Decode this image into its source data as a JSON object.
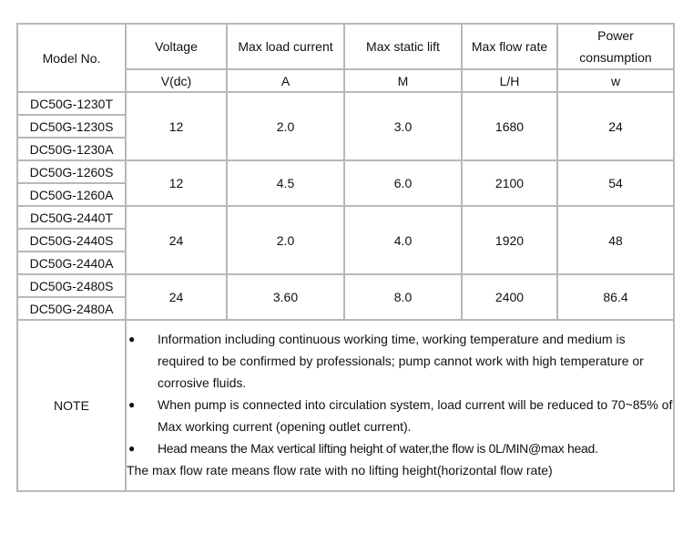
{
  "headers": [
    "Model No.",
    "Voltage",
    "Max load current",
    "Max static lift",
    "Max flow rate",
    "Power consumption"
  ],
  "units": [
    "V(dc)",
    "A",
    "M",
    "L/H",
    "w"
  ],
  "groups": [
    {
      "models": [
        "DC50G-1230T",
        "DC50G-1230S",
        "DC50G-1230A"
      ],
      "voltage": "12",
      "current": "2.0",
      "lift": "3.0",
      "flow": "1680",
      "power": "24"
    },
    {
      "models": [
        "DC50G-1260S",
        "DC50G-1260A"
      ],
      "voltage": "12",
      "current": "4.5",
      "lift": "6.0",
      "flow": "2100",
      "power": "54"
    },
    {
      "models": [
        "DC50G-2440T",
        "DC50G-2440S",
        "DC50G-2440A"
      ],
      "voltage": "24",
      "current": "2.0",
      "lift": "4.0",
      "flow": "1920",
      "power": "48"
    },
    {
      "models": [
        "DC50G-2480S",
        "DC50G-2480A"
      ],
      "voltage": "24",
      "current": "3.60",
      "lift": "8.0",
      "flow": "2400",
      "power": "86.4"
    }
  ],
  "note": {
    "label": "NOTE",
    "bullet_icon": "filled-circle-bullet",
    "bullets": [
      "Information including continuous working time, working temperature and medium is required to be confirmed by professionals; pump cannot work with high temperature or corrosive fluids.",
      "When pump is connected into circulation system, load current will be reduced to 70~85% of Max working current (opening outlet current).",
      "Head means the Max vertical lifting height of water,the flow is 0L/MIN@max head."
    ],
    "tail": "The max flow rate means flow rate with no lifting height(horizontal flow rate)"
  }
}
